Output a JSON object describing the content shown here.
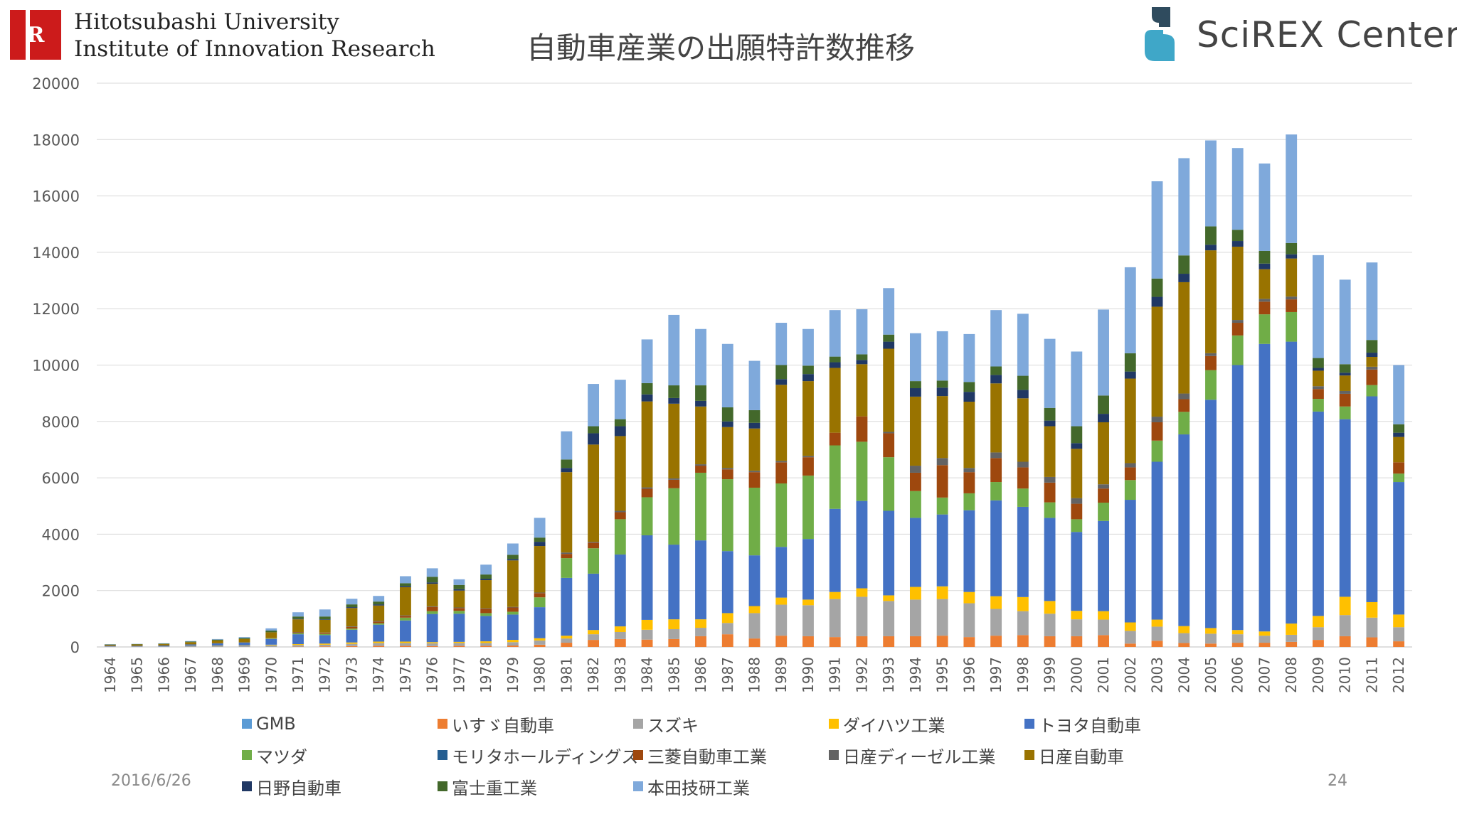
{
  "header": {
    "institution_line1": "Hitotsubashi University",
    "institution_line2": "Institute of Innovation Research",
    "logo_letter": "R",
    "brand": "SciREX Center"
  },
  "footer": {
    "date": "2016/6/26",
    "page": "24"
  },
  "chart_data": {
    "type": "bar",
    "stacked": true,
    "title": "自動車産業の出願特許数推移",
    "xlabel": "",
    "ylabel": "",
    "ylim": [
      0,
      20000
    ],
    "yticks": [
      0,
      2000,
      4000,
      6000,
      8000,
      10000,
      12000,
      14000,
      16000,
      18000,
      20000
    ],
    "grid": true,
    "legend_position": "bottom",
    "categories": [
      "1964",
      "1965",
      "1966",
      "1967",
      "1968",
      "1969",
      "1970",
      "1971",
      "1972",
      "1973",
      "1974",
      "1975",
      "1976",
      "1977",
      "1978",
      "1979",
      "1980",
      "1981",
      "1982",
      "1983",
      "1984",
      "1985",
      "1986",
      "1987",
      "1988",
      "1989",
      "1990",
      "1991",
      "1992",
      "1993",
      "1994",
      "1995",
      "1996",
      "1997",
      "1998",
      "1999",
      "2000",
      "2001",
      "2002",
      "2003",
      "2004",
      "2005",
      "2006",
      "2007",
      "2008",
      "2009",
      "2010",
      "2011",
      "2012"
    ],
    "series": [
      {
        "name": "GMB",
        "color": "#5b9bd5",
        "values": [
          0,
          0,
          0,
          0,
          0,
          0,
          0,
          0,
          0,
          0,
          0,
          0,
          0,
          0,
          0,
          0,
          0,
          0,
          0,
          0,
          0,
          0,
          0,
          0,
          0,
          0,
          0,
          0,
          0,
          0,
          0,
          0,
          0,
          0,
          0,
          0,
          0,
          0,
          0,
          0,
          0,
          0,
          0,
          0,
          0,
          0,
          0,
          0,
          0
        ]
      },
      {
        "name": "いすゞ自動車",
        "color": "#ed7d31",
        "values": [
          0,
          0,
          0,
          0,
          0,
          0,
          0,
          10,
          20,
          30,
          40,
          40,
          30,
          40,
          40,
          50,
          80,
          150,
          250,
          280,
          260,
          280,
          380,
          450,
          300,
          400,
          380,
          350,
          380,
          380,
          380,
          400,
          350,
          400,
          420,
          380,
          380,
          420,
          120,
          220,
          140,
          120,
          150,
          150,
          180,
          250,
          380,
          340,
          200
        ]
      },
      {
        "name": "スズキ",
        "color": "#a5a5a5",
        "values": [
          20,
          20,
          20,
          30,
          40,
          50,
          60,
          60,
          60,
          80,
          100,
          100,
          100,
          100,
          100,
          120,
          150,
          150,
          200,
          250,
          350,
          350,
          300,
          400,
          900,
          1100,
          1100,
          1350,
          1400,
          1250,
          1300,
          1300,
          1200,
          950,
          850,
          800,
          600,
          550,
          450,
          500,
          350,
          350,
          300,
          250,
          250,
          450,
          750,
          700,
          500
        ]
      },
      {
        "name": "ダイハツ工業",
        "color": "#ffc000",
        "values": [
          0,
          0,
          0,
          10,
          10,
          10,
          20,
          30,
          40,
          50,
          50,
          50,
          40,
          40,
          60,
          80,
          80,
          100,
          150,
          200,
          350,
          350,
          300,
          350,
          250,
          250,
          200,
          250,
          300,
          200,
          450,
          450,
          400,
          450,
          500,
          450,
          300,
          300,
          300,
          250,
          250,
          200,
          150,
          150,
          400,
          400,
          650,
          550,
          450
        ]
      },
      {
        "name": "トヨタ自動車",
        "color": "#4472c4",
        "values": [
          20,
          20,
          30,
          50,
          80,
          100,
          200,
          350,
          300,
          450,
          600,
          750,
          1000,
          1000,
          900,
          900,
          1100,
          2050,
          2000,
          2550,
          3000,
          2650,
          2800,
          2200,
          1800,
          1800,
          2150,
          2950,
          3100,
          3000,
          2450,
          2550,
          2900,
          3400,
          3200,
          2950,
          2800,
          3200,
          4350,
          5600,
          6800,
          8100,
          9400,
          10200,
          10000,
          7250,
          6300,
          7300,
          4700
        ]
      },
      {
        "name": "マツダ",
        "color": "#70ad47",
        "values": [
          0,
          0,
          0,
          0,
          0,
          0,
          20,
          40,
          40,
          40,
          50,
          100,
          100,
          100,
          100,
          100,
          350,
          700,
          900,
          1250,
          1350,
          2000,
          2400,
          2550,
          2400,
          2250,
          2250,
          2250,
          2100,
          1900,
          950,
          600,
          600,
          650,
          650,
          550,
          450,
          650,
          700,
          750,
          800,
          1050,
          1050,
          1050,
          1050,
          450,
          450,
          400,
          300
        ]
      },
      {
        "name": "モリタホールディングス",
        "color": "#255e91",
        "values": [
          0,
          0,
          0,
          0,
          0,
          0,
          0,
          0,
          0,
          0,
          0,
          0,
          0,
          0,
          0,
          0,
          0,
          0,
          0,
          0,
          0,
          0,
          0,
          0,
          0,
          0,
          0,
          0,
          0,
          0,
          0,
          0,
          0,
          0,
          0,
          0,
          0,
          0,
          0,
          0,
          0,
          0,
          0,
          0,
          0,
          0,
          0,
          0,
          0
        ]
      },
      {
        "name": "三菱自動車工業",
        "color": "#9e480e",
        "values": [
          0,
          0,
          0,
          0,
          0,
          0,
          10,
          30,
          40,
          60,
          60,
          60,
          150,
          100,
          150,
          150,
          150,
          150,
          200,
          250,
          300,
          300,
          250,
          350,
          550,
          750,
          650,
          450,
          900,
          850,
          650,
          1150,
          750,
          850,
          750,
          700,
          550,
          500,
          450,
          650,
          450,
          500,
          450,
          450,
          450,
          350,
          450,
          550,
          400
        ]
      },
      {
        "name": "日産ディーゼル工業",
        "color": "#636363",
        "values": [
          0,
          0,
          0,
          0,
          0,
          0,
          10,
          10,
          10,
          20,
          20,
          20,
          20,
          20,
          20,
          20,
          20,
          50,
          30,
          50,
          50,
          50,
          50,
          50,
          50,
          50,
          50,
          0,
          0,
          50,
          250,
          250,
          150,
          200,
          200,
          200,
          200,
          150,
          150,
          200,
          200,
          100,
          100,
          100,
          100,
          100,
          100,
          100,
          0
        ]
      },
      {
        "name": "日産自動車",
        "color": "#997300",
        "values": [
          40,
          50,
          50,
          80,
          100,
          120,
          200,
          450,
          450,
          650,
          550,
          1000,
          800,
          600,
          1000,
          1650,
          1650,
          2850,
          3450,
          2650,
          3050,
          2650,
          2050,
          1450,
          1500,
          2700,
          2650,
          2300,
          1850,
          2950,
          2450,
          2200,
          2350,
          2450,
          2250,
          1800,
          1750,
          2200,
          3000,
          3900,
          3950,
          3650,
          2600,
          1050,
          1350,
          550,
          550,
          350,
          900
        ]
      },
      {
        "name": "日野自動車",
        "color": "#203864",
        "values": [
          0,
          0,
          0,
          0,
          0,
          0,
          0,
          20,
          20,
          30,
          40,
          40,
          50,
          50,
          50,
          50,
          150,
          150,
          400,
          350,
          250,
          200,
          200,
          200,
          200,
          200,
          250,
          200,
          150,
          250,
          300,
          300,
          350,
          300,
          300,
          200,
          200,
          300,
          250,
          350,
          300,
          200,
          200,
          200,
          150,
          100,
          100,
          150,
          150
        ]
      },
      {
        "name": "富士重工業",
        "color": "#43682b",
        "values": [
          10,
          10,
          20,
          20,
          30,
          40,
          60,
          80,
          100,
          100,
          100,
          100,
          200,
          150,
          150,
          150,
          150,
          300,
          250,
          250,
          400,
          450,
          550,
          500,
          450,
          500,
          300,
          200,
          200,
          250,
          250,
          250,
          350,
          300,
          500,
          450,
          600,
          650,
          650,
          650,
          650,
          650,
          400,
          450,
          400,
          350,
          300,
          450,
          300
        ]
      },
      {
        "name": "本田技研工業",
        "color": "#7fa9db",
        "values": [
          10,
          10,
          10,
          20,
          20,
          30,
          80,
          150,
          250,
          200,
          200,
          250,
          300,
          200,
          350,
          400,
          700,
          1000,
          1500,
          1400,
          1550,
          2500,
          2000,
          2250,
          1750,
          1500,
          1300,
          1650,
          1600,
          1650,
          1700,
          1750,
          1700,
          2000,
          2200,
          2450,
          2650,
          3050,
          3050,
          3450,
          3450,
          3050,
          2900,
          3100,
          3850,
          3650,
          3000,
          2750,
          2100
        ]
      }
    ]
  }
}
